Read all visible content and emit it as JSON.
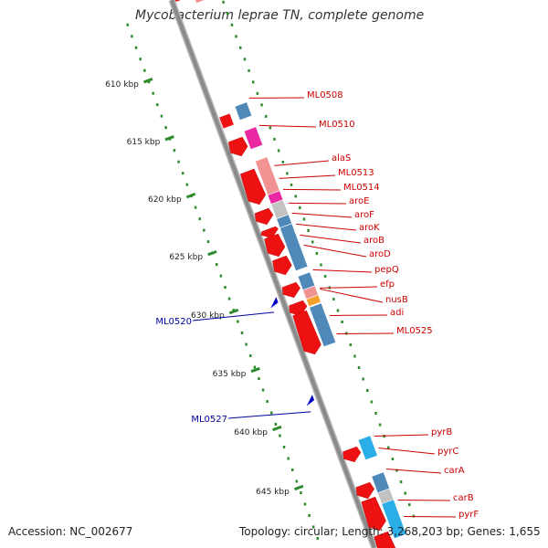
{
  "title": "Mycobacterium leprae TN, complete genome",
  "footer": {
    "accession": "Accession: NC_002677",
    "summary": "Topology: circular; Length: 3,268,203 bp; Genes: 1,655"
  },
  "colors": {
    "backbone": "#8a8a8a",
    "forward_cds": "#ee1111",
    "reverse_cds_blue": "#3f7fb5",
    "reverse_cds_pink": "#f08a8a",
    "reverse_cds_magenta": "#e8169a",
    "reverse_cds_gray": "#bdbdbd",
    "reverse_cds_orange": "#f39a1a",
    "reverse_cds_cyan": "#1aa7e6",
    "tick": "#2e8b2e",
    "red_label": "#cc0000",
    "blue_label": "#00009c"
  },
  "scale": {
    "ticks": [
      {
        "label": "610 kbp"
      },
      {
        "label": "615 kbp"
      },
      {
        "label": "620 kbp"
      },
      {
        "label": "625 kbp"
      },
      {
        "label": "630 kbp"
      },
      {
        "label": "635 kbp"
      },
      {
        "label": "640 kbp"
      },
      {
        "label": "645 kbp"
      }
    ]
  },
  "genes_right": [
    {
      "label": "ML0508"
    },
    {
      "label": "ML0510"
    },
    {
      "label": "alaS"
    },
    {
      "label": "ML0513"
    },
    {
      "label": "ML0514"
    },
    {
      "label": "aroE"
    },
    {
      "label": "aroF"
    },
    {
      "label": "aroK"
    },
    {
      "label": "aroB"
    },
    {
      "label": "aroD"
    },
    {
      "label": "pepQ"
    },
    {
      "label": "efp"
    },
    {
      "label": "nusB"
    },
    {
      "label": "adi"
    },
    {
      "label": "ML0525"
    },
    {
      "label": "pyrB"
    },
    {
      "label": "pyrC"
    },
    {
      "label": "carA"
    },
    {
      "label": "carB"
    },
    {
      "label": "pyrF"
    }
  ],
  "genes_left": [
    {
      "label": "ML0520"
    },
    {
      "label": "ML0527"
    }
  ]
}
